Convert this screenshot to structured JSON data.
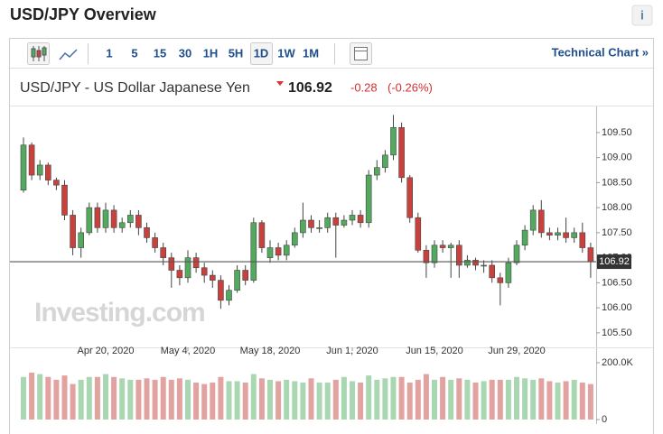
{
  "header": {
    "title": "USD/JPY Overview",
    "technical_chart": "Technical Chart »",
    "timeframes": [
      "1",
      "5",
      "15",
      "30",
      "1H",
      "5H",
      "1D",
      "1W",
      "1M"
    ],
    "instrument": "USD/JPY - US Dollar Japanese Yen",
    "change": "-0.28",
    "change_percent": "(-0.26%)",
    "watermark": "Investing.com"
  },
  "chart_data": {
    "type": "candlestick",
    "last_price": 106.92,
    "categories": [
      null,
      null,
      null,
      null,
      null,
      null,
      null,
      null,
      null,
      null,
      "Apr 20, 2020",
      null,
      null,
      null,
      null,
      null,
      null,
      null,
      null,
      null,
      "May 4, 2020",
      null,
      null,
      null,
      null,
      null,
      null,
      null,
      null,
      null,
      "May 18, 2020",
      null,
      null,
      null,
      null,
      null,
      null,
      null,
      null,
      null,
      "Jun 1, 2020",
      null,
      null,
      null,
      null,
      null,
      null,
      null,
      null,
      null,
      "Jun 15, 2020",
      null,
      null,
      null,
      null,
      null,
      null,
      null,
      null,
      null,
      "Jun 29, 2020",
      null,
      null,
      null,
      null,
      null,
      null,
      null,
      null,
      null
    ],
    "open": [
      108.35,
      109.25,
      108.65,
      108.85,
      108.55,
      108.45,
      107.85,
      107.2,
      107.5,
      108.0,
      107.6,
      107.95,
      107.6,
      107.7,
      107.85,
      107.6,
      107.4,
      107.2,
      107.0,
      106.75,
      106.6,
      107.0,
      106.8,
      106.65,
      106.55,
      106.15,
      106.35,
      106.75,
      106.55,
      107.7,
      107.0,
      107.2,
      107.05,
      107.25,
      107.5,
      107.75,
      107.6,
      107.6,
      107.8,
      107.65,
      107.75,
      107.85,
      107.7,
      108.65,
      108.8,
      109.05,
      109.6,
      108.6,
      107.8,
      107.15,
      106.9,
      107.25,
      107.2,
      107.25,
      106.85,
      106.95,
      106.85,
      106.85,
      106.6,
      106.5,
      106.9,
      107.25,
      107.55,
      107.95,
      107.5,
      107.45,
      107.5,
      107.4,
      107.5,
      107.2
    ],
    "high": [
      109.4,
      109.3,
      108.95,
      108.9,
      108.6,
      108.55,
      107.95,
      107.6,
      108.1,
      108.1,
      108.1,
      108.05,
      107.8,
      107.95,
      107.95,
      107.7,
      107.5,
      107.3,
      107.1,
      106.85,
      107.15,
      107.1,
      106.9,
      106.75,
      106.65,
      106.45,
      106.85,
      106.85,
      107.8,
      107.75,
      107.35,
      107.3,
      107.35,
      107.6,
      108.1,
      107.85,
      107.75,
      107.9,
      107.9,
      107.85,
      107.95,
      107.95,
      108.75,
      108.95,
      109.15,
      109.85,
      109.7,
      108.65,
      107.9,
      107.25,
      107.35,
      107.35,
      107.3,
      107.35,
      107.05,
      107.0,
      106.95,
      106.95,
      106.7,
      107.0,
      107.35,
      107.65,
      108.05,
      108.15,
      107.6,
      107.6,
      107.8,
      107.6,
      107.7,
      107.3
    ],
    "low": [
      108.3,
      108.55,
      108.55,
      108.45,
      108.35,
      107.75,
      107.05,
      107.0,
      107.45,
      107.5,
      107.5,
      107.5,
      107.5,
      107.6,
      107.45,
      107.3,
      107.1,
      106.85,
      106.4,
      106.45,
      106.5,
      106.7,
      106.5,
      106.4,
      105.98,
      106.05,
      106.3,
      106.45,
      106.5,
      107.1,
      106.9,
      106.95,
      106.95,
      107.2,
      107.4,
      107.5,
      107.5,
      107.5,
      107.0,
      107.6,
      107.65,
      107.6,
      107.6,
      108.55,
      108.7,
      108.95,
      108.5,
      107.7,
      107.1,
      106.6,
      106.8,
      107.1,
      106.6,
      106.6,
      106.8,
      106.75,
      106.7,
      106.5,
      106.05,
      106.4,
      106.85,
      107.15,
      107.45,
      107.4,
      107.35,
      107.35,
      107.3,
      107.3,
      107.1,
      106.6
    ],
    "close": [
      109.25,
      108.65,
      108.85,
      108.55,
      108.45,
      107.85,
      107.2,
      107.5,
      108.0,
      107.6,
      107.95,
      107.6,
      107.7,
      107.85,
      107.6,
      107.4,
      107.2,
      107.0,
      106.75,
      106.6,
      107.0,
      106.8,
      106.65,
      106.55,
      106.15,
      106.35,
      106.75,
      106.55,
      107.7,
      107.2,
      107.2,
      107.05,
      107.25,
      107.5,
      107.75,
      107.6,
      107.6,
      107.8,
      107.65,
      107.75,
      107.85,
      107.7,
      108.65,
      108.8,
      109.05,
      109.6,
      108.6,
      107.8,
      107.15,
      106.9,
      107.25,
      107.2,
      107.25,
      106.85,
      106.95,
      106.85,
      106.85,
      106.6,
      106.5,
      106.9,
      107.25,
      107.55,
      107.95,
      107.5,
      107.45,
      107.5,
      107.4,
      107.5,
      107.2,
      106.92
    ],
    "volume": [
      150000,
      165000,
      160000,
      150000,
      140000,
      155000,
      125000,
      140000,
      150000,
      150000,
      160000,
      150000,
      145000,
      140000,
      140000,
      145000,
      140000,
      150000,
      140000,
      145000,
      140000,
      130000,
      125000,
      130000,
      150000,
      135000,
      135000,
      130000,
      160000,
      145000,
      140000,
      135000,
      140000,
      135000,
      130000,
      145000,
      130000,
      130000,
      140000,
      150000,
      135000,
      130000,
      155000,
      140000,
      145000,
      150000,
      150000,
      130000,
      140000,
      160000,
      140000,
      150000,
      140000,
      145000,
      140000,
      130000,
      135000,
      140000,
      140000,
      140000,
      150000,
      145000,
      140000,
      145000,
      135000,
      130000,
      135000,
      140000,
      130000,
      125000
    ],
    "ylim": [
      105.21,
      110.02
    ],
    "yticks": [
      {
        "value": 105.5,
        "label": "105.50"
      },
      {
        "value": 106,
        "label": "106.00"
      },
      {
        "value": 106.5,
        "label": "106.50"
      },
      {
        "value": 107,
        "label": "107.00"
      },
      {
        "value": 107.5,
        "label": "107.50"
      },
      {
        "value": 108,
        "label": "108.00"
      },
      {
        "value": 108.5,
        "label": "108.50"
      },
      {
        "value": 109,
        "label": "109.00"
      },
      {
        "value": 109.5,
        "label": "109.50"
      }
    ],
    "volume_lim": [
      0,
      200000
    ],
    "volume_ticks": [
      {
        "value": 200000,
        "label": "200.0K"
      },
      0
    ],
    "up_color": "#53a95e",
    "down_color": "#c9413d",
    "up_volume_color": "#a9d7b1",
    "down_volume_color": "#e2a2a0",
    "grid": false
  }
}
